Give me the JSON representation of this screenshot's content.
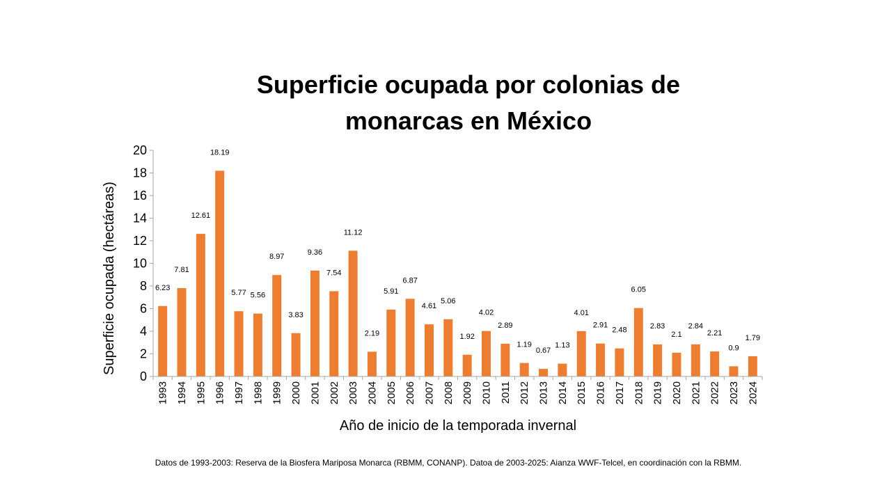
{
  "chart_data": {
    "type": "bar",
    "title_lines": [
      "Superficie ocupada por colonias de",
      "monarcas en México"
    ],
    "ylabel": "Superficie ocupada  (hectáreas)",
    "xlabel": "Año de inicio de la temporada invernal",
    "ylim": [
      0,
      20
    ],
    "yticks": [
      "0",
      "2",
      "4",
      "6",
      "8",
      "10",
      "12",
      "14",
      "16",
      "18",
      "20"
    ],
    "grid": false,
    "categories": [
      "1993",
      "1994",
      "1995",
      "1996",
      "1997",
      "1998",
      "1999",
      "2000",
      "2001",
      "2002",
      "2003",
      "2004",
      "2005",
      "2006",
      "2007",
      "2008",
      "2009",
      "2010",
      "2011",
      "2012",
      "2013",
      "2014",
      "2015",
      "2016",
      "2017",
      "2018",
      "2019",
      "2020",
      "2021",
      "2022",
      "2023",
      "2024"
    ],
    "values": [
      6.23,
      7.81,
      12.61,
      18.19,
      5.77,
      5.56,
      8.97,
      3.83,
      9.36,
      7.54,
      11.12,
      2.19,
      5.91,
      6.87,
      4.61,
      5.06,
      1.92,
      4.02,
      2.89,
      1.19,
      0.67,
      1.13,
      4.01,
      2.91,
      2.48,
      6.05,
      2.83,
      2.1,
      2.84,
      2.21,
      0.9,
      1.79
    ],
    "value_labels": [
      "6.23",
      "7.81",
      "12.61",
      "18.19",
      "5.77",
      "5.56",
      "8.97",
      "3.83",
      "9.36",
      "7.54",
      "11.12",
      "2.19",
      "5.91",
      "6.87",
      "4.61",
      "5.06",
      "1.92",
      "4.02",
      "2.89",
      "1.19",
      "0.67",
      "1.13",
      "4.01",
      "2.91",
      "2.48",
      "6.05",
      "2.83",
      "2.1",
      "2.84",
      "2.21",
      "0.9",
      "1.79"
    ],
    "bar_color": "#ED7D31",
    "axis_color": "#A6A6A6"
  },
  "footer": {
    "source": "Datos de 1993-2003: Reserva de la Biosfera Mariposa Monarca (RBMM, CONANP). Datoa de 2003-2025: Aianza WWF-Telcel, en coordinación con la RBMM."
  }
}
